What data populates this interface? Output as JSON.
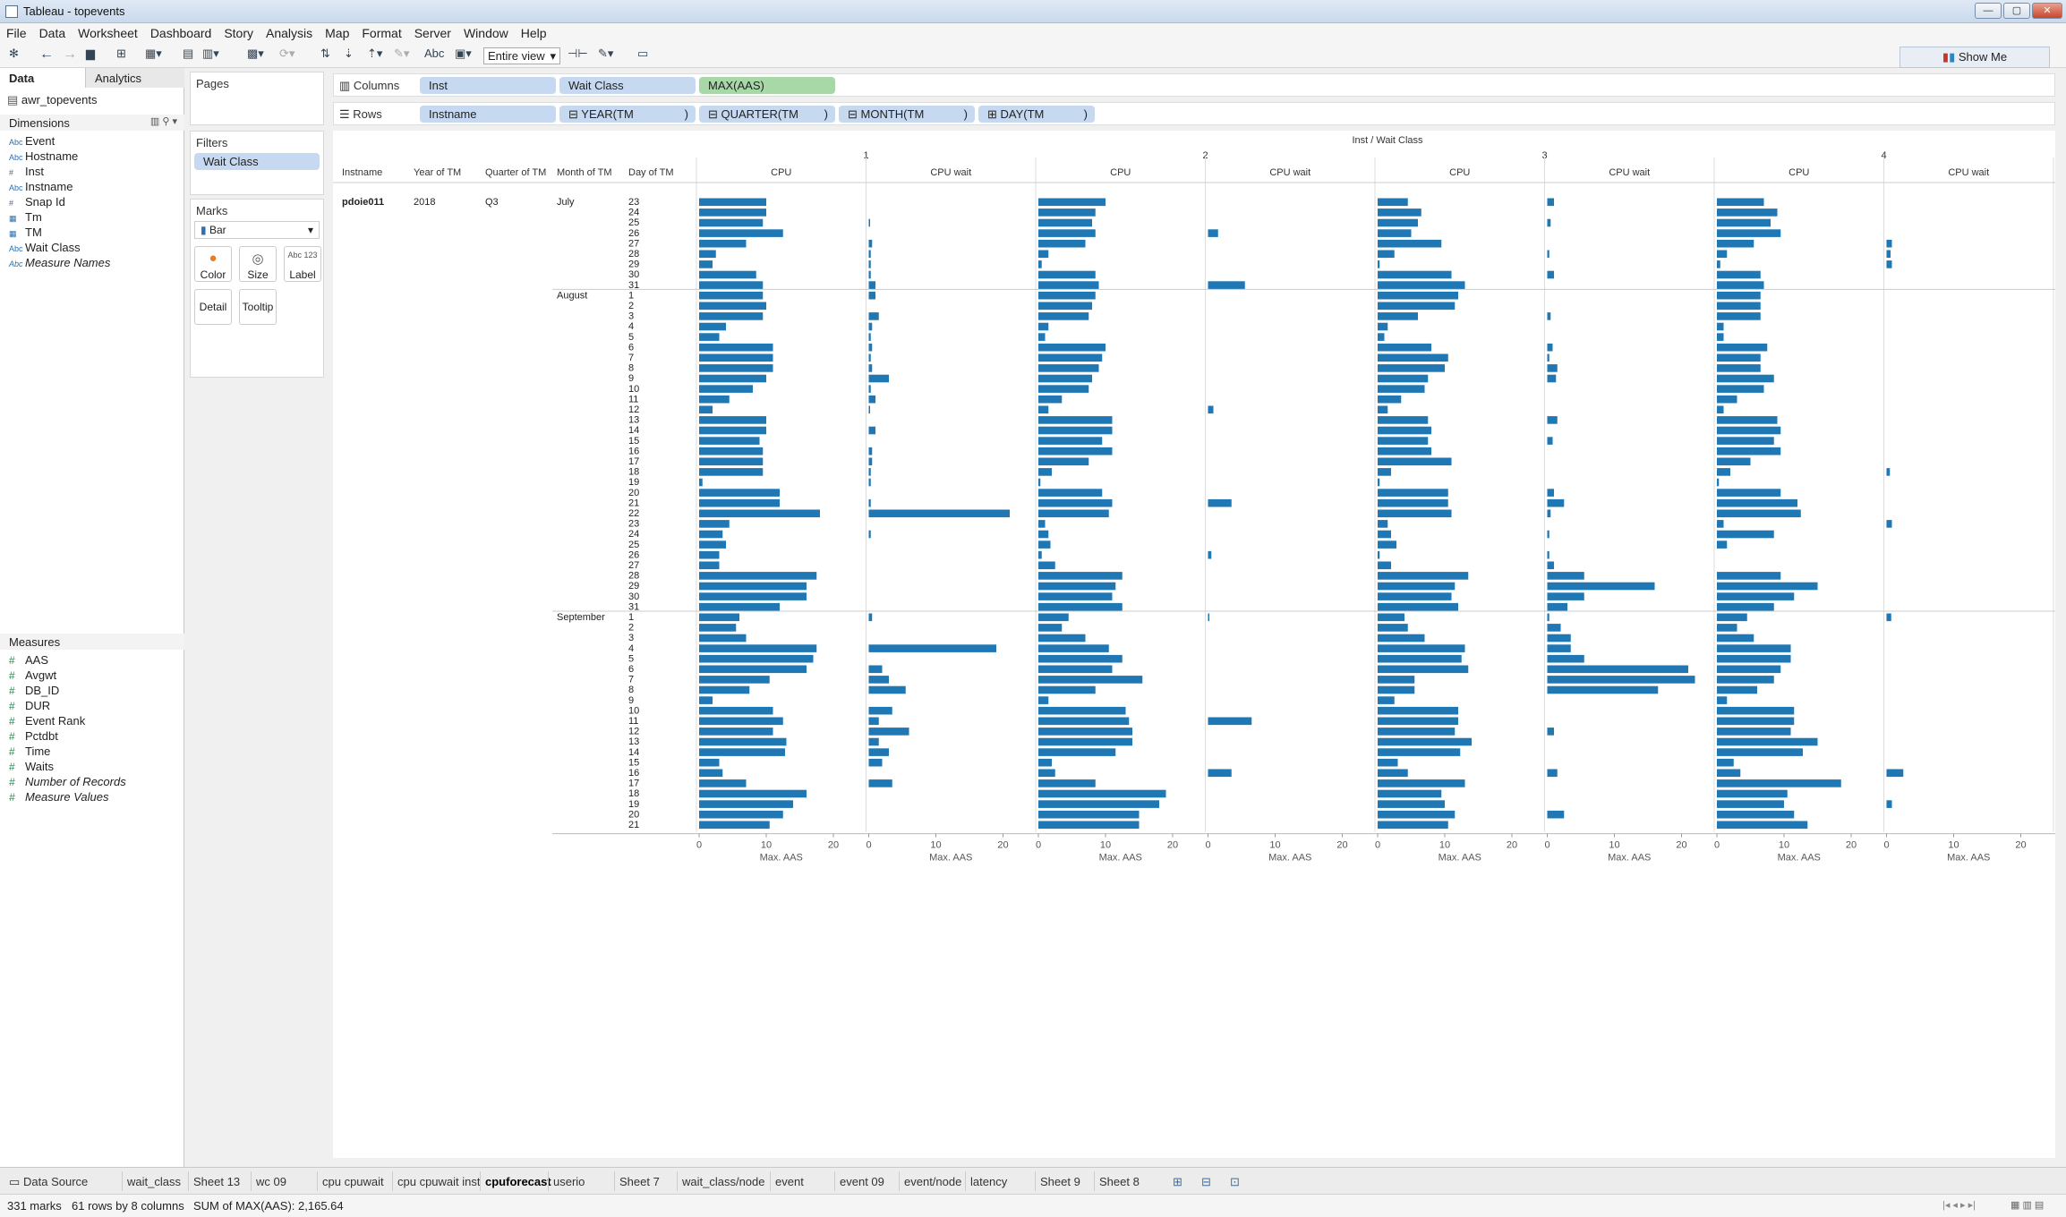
{
  "window": {
    "title": "Tableau - topevents"
  },
  "menu": [
    "File",
    "Data",
    "Worksheet",
    "Dashboard",
    "Story",
    "Analysis",
    "Map",
    "Format",
    "Server",
    "Window",
    "Help"
  ],
  "toolbar": {
    "abc_label": "Abc",
    "view_select": "Entire view"
  },
  "show_me": "Show Me",
  "left": {
    "tabs": {
      "data": "Data",
      "analytics": "Analytics"
    },
    "datasource": "awr_topevents",
    "dimensions_header": "Dimensions",
    "dimensions": [
      {
        "type": "Abc",
        "name": "Event"
      },
      {
        "type": "Abc",
        "name": "Hostname"
      },
      {
        "type": "#",
        "name": "Inst"
      },
      {
        "type": "Abc",
        "name": "Instname"
      },
      {
        "type": "#",
        "name": "Snap Id"
      },
      {
        "type": "date",
        "name": "Tm"
      },
      {
        "type": "date",
        "name": "TM"
      },
      {
        "type": "Abc",
        "name": "Wait Class"
      },
      {
        "type": "Abc",
        "name": "Measure Names"
      }
    ],
    "measures_header": "Measures",
    "measures": [
      "AAS",
      "Avgwt",
      "DB_ID",
      "DUR",
      "Event Rank",
      "Pctdbt",
      "Time",
      "Waits",
      "Number of Records",
      "Measure Values"
    ]
  },
  "cards": {
    "pages": "Pages",
    "filters": "Filters",
    "filter_pill": "Wait Class",
    "marks": "Marks",
    "mark_type": "Bar",
    "buttons": {
      "color": "Color",
      "size": "Size",
      "label": "Label",
      "detail": "Detail",
      "tooltip": "Tooltip"
    }
  },
  "shelves": {
    "columns_label": "Columns",
    "rows_label": "Rows",
    "columns": [
      "Inst",
      "Wait Class",
      "MAX(AAS)"
    ],
    "rows": [
      "Instname",
      "YEAR(TM",
      "QUARTER(TM",
      "MONTH(TM",
      "DAY(TM"
    ]
  },
  "viz": {
    "top_header": "Inst  /  Wait Class",
    "inst_values": [
      "1",
      "2",
      "3",
      "4"
    ],
    "wait_classes": [
      "CPU",
      "CPU wait"
    ],
    "row_headers": [
      "Instname",
      "Year of TM",
      "Quarter of TM",
      "Month of TM",
      "Day of TM"
    ],
    "instname": "pdoie011",
    "year": "2018",
    "quarter": "Q3",
    "months": [
      {
        "name": "July",
        "start": 0
      },
      {
        "name": "August",
        "start": 9
      },
      {
        "name": "September",
        "start": 40
      }
    ],
    "axis_ticks": [
      "0",
      "10",
      "20"
    ],
    "axis_title": "Max. AAS"
  },
  "chart_data": {
    "type": "bar",
    "orientation": "horizontal",
    "xlabel": "Max. AAS",
    "xlim": [
      0,
      22
    ],
    "categories": [
      "23",
      "24",
      "25",
      "26",
      "27",
      "28",
      "29",
      "30",
      "31",
      "1",
      "2",
      "3",
      "4",
      "5",
      "6",
      "7",
      "8",
      "9",
      "10",
      "11",
      "12",
      "13",
      "14",
      "15",
      "16",
      "17",
      "18",
      "19",
      "20",
      "21",
      "22",
      "23",
      "24",
      "25",
      "26",
      "27",
      "28",
      "29",
      "30",
      "31",
      "1",
      "2",
      "3",
      "4",
      "5",
      "6",
      "7",
      "8",
      "9",
      "10",
      "11",
      "12",
      "13",
      "14",
      "15",
      "16",
      "17",
      "18",
      "19",
      "20",
      "21"
    ],
    "panels": [
      {
        "inst": "1",
        "wait_class": "CPU",
        "values": [
          10,
          10,
          9.5,
          12.5,
          7,
          2.5,
          2,
          8.5,
          9.5,
          9.5,
          10,
          9.5,
          4,
          3,
          11,
          11,
          11,
          10,
          8,
          4.5,
          2,
          10,
          10,
          9,
          9.5,
          9.5,
          9.5,
          0.5,
          12,
          12,
          18,
          4.5,
          3.5,
          4,
          3,
          3,
          17.5,
          16,
          16,
          12,
          6,
          5.5,
          7,
          17.5,
          17,
          16,
          10.5,
          7.5,
          2,
          11,
          12.5,
          11,
          13,
          12.8,
          3,
          3.5,
          7,
          16,
          14,
          12.5,
          10.5
        ]
      },
      {
        "inst": "1",
        "wait_class": "CPU wait",
        "values": [
          0,
          0,
          0.2,
          0,
          0.5,
          0.3,
          0.3,
          0.3,
          1,
          1,
          0,
          1.5,
          0.5,
          0.3,
          0.5,
          0.3,
          0.5,
          3,
          0.3,
          1,
          0.2,
          0,
          1,
          0,
          0.5,
          0.5,
          0.3,
          0.3,
          0,
          0.3,
          21,
          0,
          0.3,
          0,
          0,
          0,
          0,
          0,
          0,
          0,
          0.5,
          0,
          0,
          19,
          0,
          2,
          3,
          5.5,
          0,
          3.5,
          1.5,
          6,
          1.5,
          3,
          2,
          0,
          3.5,
          0,
          0,
          0,
          0
        ]
      },
      {
        "inst": "2",
        "wait_class": "CPU",
        "values": [
          10,
          8.5,
          8,
          8.5,
          7,
          1.5,
          0.5,
          8.5,
          9,
          8.5,
          8,
          7.5,
          1.5,
          1,
          10,
          9.5,
          9,
          8,
          7.5,
          3.5,
          1.5,
          11,
          11,
          9.5,
          11,
          7.5,
          2,
          0.3,
          9.5,
          11,
          10.5,
          1,
          1.5,
          1.8,
          0.5,
          2.5,
          12.5,
          11.5,
          11,
          12.5,
          4.5,
          3.5,
          7,
          10.5,
          12.5,
          11,
          15.5,
          8.5,
          1.5,
          13,
          13.5,
          14,
          14,
          11.5,
          2,
          2.5,
          8.5,
          19,
          18,
          15,
          15
        ]
      },
      {
        "inst": "2",
        "wait_class": "CPU wait",
        "values": [
          0,
          0,
          0,
          1.5,
          0,
          0,
          0,
          0,
          5.5,
          0,
          0,
          0,
          0,
          0,
          0,
          0,
          0,
          0,
          0,
          0,
          0.8,
          0,
          0,
          0,
          0,
          0,
          0,
          0,
          0,
          3.5,
          0,
          0,
          0,
          0,
          0.5,
          0,
          0,
          0,
          0,
          0,
          0.2,
          0,
          0,
          0,
          0,
          0,
          0,
          0,
          0,
          0,
          6.5,
          0,
          0,
          0,
          0,
          3.5,
          0,
          0,
          0,
          0,
          0
        ]
      },
      {
        "inst": "3",
        "wait_class": "CPU",
        "values": [
          4.5,
          6.5,
          6,
          5,
          9.5,
          2.5,
          0.3,
          11,
          13,
          12,
          11.5,
          6,
          1.5,
          1,
          8,
          10.5,
          10,
          7.5,
          7,
          3.5,
          1.5,
          7.5,
          8,
          7.5,
          8,
          11,
          2,
          0.3,
          10.5,
          10.5,
          11,
          1.5,
          2,
          2.8,
          0.3,
          2,
          13.5,
          11.5,
          11,
          12,
          4,
          4.5,
          7,
          13,
          12.5,
          13.5,
          5.5,
          5.5,
          2.5,
          12,
          12,
          11.5,
          14,
          12.3,
          3,
          4.5,
          13,
          9.5,
          10,
          11.5,
          10.5
        ]
      },
      {
        "inst": "3",
        "wait_class": "CPU wait",
        "values": [
          1,
          0,
          0.5,
          0,
          0,
          0.3,
          0,
          1,
          0,
          0,
          0,
          0.5,
          0,
          0,
          0.8,
          0.3,
          1.5,
          1.3,
          0,
          0,
          0,
          1.5,
          0,
          0.8,
          0,
          0,
          0,
          0,
          1,
          2.5,
          0.5,
          0,
          0.3,
          0,
          0.3,
          1,
          5.5,
          16,
          5.5,
          3,
          0.3,
          2,
          3.5,
          3.5,
          5.5,
          21,
          22,
          16.5,
          0,
          0,
          0,
          1,
          0,
          0,
          0,
          1.5,
          0,
          0,
          0,
          2.5,
          0
        ]
      },
      {
        "inst": "4",
        "wait_class": "CPU",
        "values": [
          7,
          9,
          8,
          9.5,
          5.5,
          1.5,
          0.5,
          6.5,
          7,
          6.5,
          6.5,
          6.5,
          1,
          1,
          7.5,
          6.5,
          6.5,
          8.5,
          7,
          3,
          1,
          9,
          9.5,
          8.5,
          9.5,
          5,
          2,
          0.3,
          9.5,
          12,
          12.5,
          1,
          8.5,
          1.5,
          0,
          0,
          9.5,
          15,
          11.5,
          8.5,
          4.5,
          3,
          5.5,
          11,
          11,
          9.5,
          8.5,
          6,
          1.5,
          11.5,
          11.5,
          11,
          15,
          12.8,
          2.5,
          3.5,
          18.5,
          10.5,
          10,
          11.5,
          13.5
        ]
      },
      {
        "inst": "4",
        "wait_class": "CPU wait",
        "values": [
          0,
          0,
          0,
          0,
          0.8,
          0.6,
          0.8,
          0,
          0,
          0,
          0,
          0,
          0,
          0,
          0,
          0,
          0,
          0,
          0,
          0,
          0,
          0,
          0,
          0,
          0,
          0,
          0.5,
          0,
          0,
          0,
          0,
          0.8,
          0,
          0,
          0,
          0,
          0,
          0,
          0,
          0,
          0.7,
          0,
          0,
          0,
          0,
          0,
          0,
          0,
          0,
          0,
          0,
          0,
          0,
          0,
          0,
          2.5,
          0,
          0,
          0.8,
          0,
          0
        ]
      }
    ]
  },
  "sheet_tabs": [
    "Data Source",
    "wait_class",
    "Sheet 13",
    "wc 09",
    "cpu cpuwait",
    "cpu cpuwait inst",
    "cpuforecast",
    "userio",
    "Sheet 7",
    "wait_class/node",
    "event",
    "event 09",
    "event/node",
    "latency",
    "Sheet 9",
    "Sheet 8"
  ],
  "active_sheet": "cpuforecast",
  "status": {
    "marks": "331 marks",
    "rows_cols": "61 rows by 8 columns",
    "sum": "SUM of MAX(AAS): 2,165.64"
  }
}
